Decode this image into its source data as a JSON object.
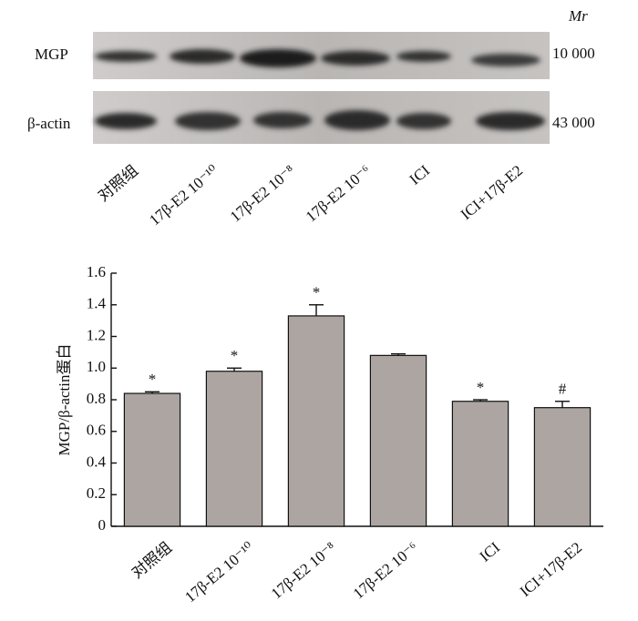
{
  "blot": {
    "rows": [
      {
        "label": "MGP",
        "mr": "10 000"
      },
      {
        "label": "β-actin",
        "mr": "43 000"
      }
    ],
    "mr_header": "Mr",
    "lanes": [
      "对照组",
      "17β-E2  10⁻¹⁰",
      "17β-E2  10⁻⁸",
      "17β-E2  10⁻⁶",
      "ICI",
      "ICI+17β-E2"
    ]
  },
  "chart_data": {
    "type": "bar",
    "ylabel": "MGP/β-actin蛋白",
    "categories": [
      "对照组",
      "17β-E2  10⁻¹⁰",
      "17β-E2  10⁻⁸",
      "17β-E2  10⁻⁶",
      "ICI",
      "ICI+17β-E2"
    ],
    "values": [
      0.84,
      0.98,
      1.33,
      1.08,
      0.79,
      0.75
    ],
    "errors": [
      0.01,
      0.02,
      0.07,
      0.01,
      0.01,
      0.04
    ],
    "annotations": [
      "*",
      "*",
      "*",
      null,
      "*",
      "#"
    ],
    "color": "#aca5a2",
    "ylim": [
      0,
      1.6
    ],
    "yticks": [
      0,
      0.2,
      0.4,
      0.6,
      0.8,
      {
        "value": 1,
        "label": "1.0"
      },
      1.2,
      1.4,
      1.6
    ]
  }
}
